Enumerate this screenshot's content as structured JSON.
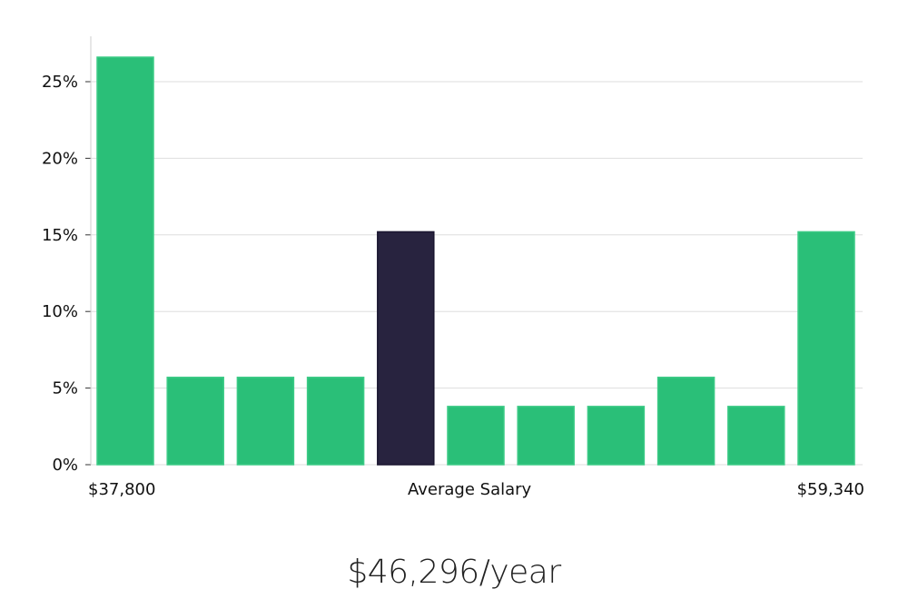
{
  "chart_data": {
    "type": "bar",
    "values": [
      26.6,
      5.7,
      5.7,
      5.7,
      15.2,
      3.8,
      3.8,
      3.8,
      5.7,
      3.8,
      15.2
    ],
    "highlight_index": 4,
    "y_ticks": [
      "0%",
      "5%",
      "10%",
      "15%",
      "20%",
      "25%"
    ],
    "ylim": [
      0,
      28
    ],
    "grid": true,
    "x_min_label": "$37,800",
    "x_mid_label": "Average Salary",
    "x_max_label": "$59,340",
    "colors": {
      "bar": "#2abf78",
      "highlight": "#28233f",
      "grid": "#dedede",
      "axis": "#cccccc"
    }
  },
  "headline": "$46,296/year"
}
